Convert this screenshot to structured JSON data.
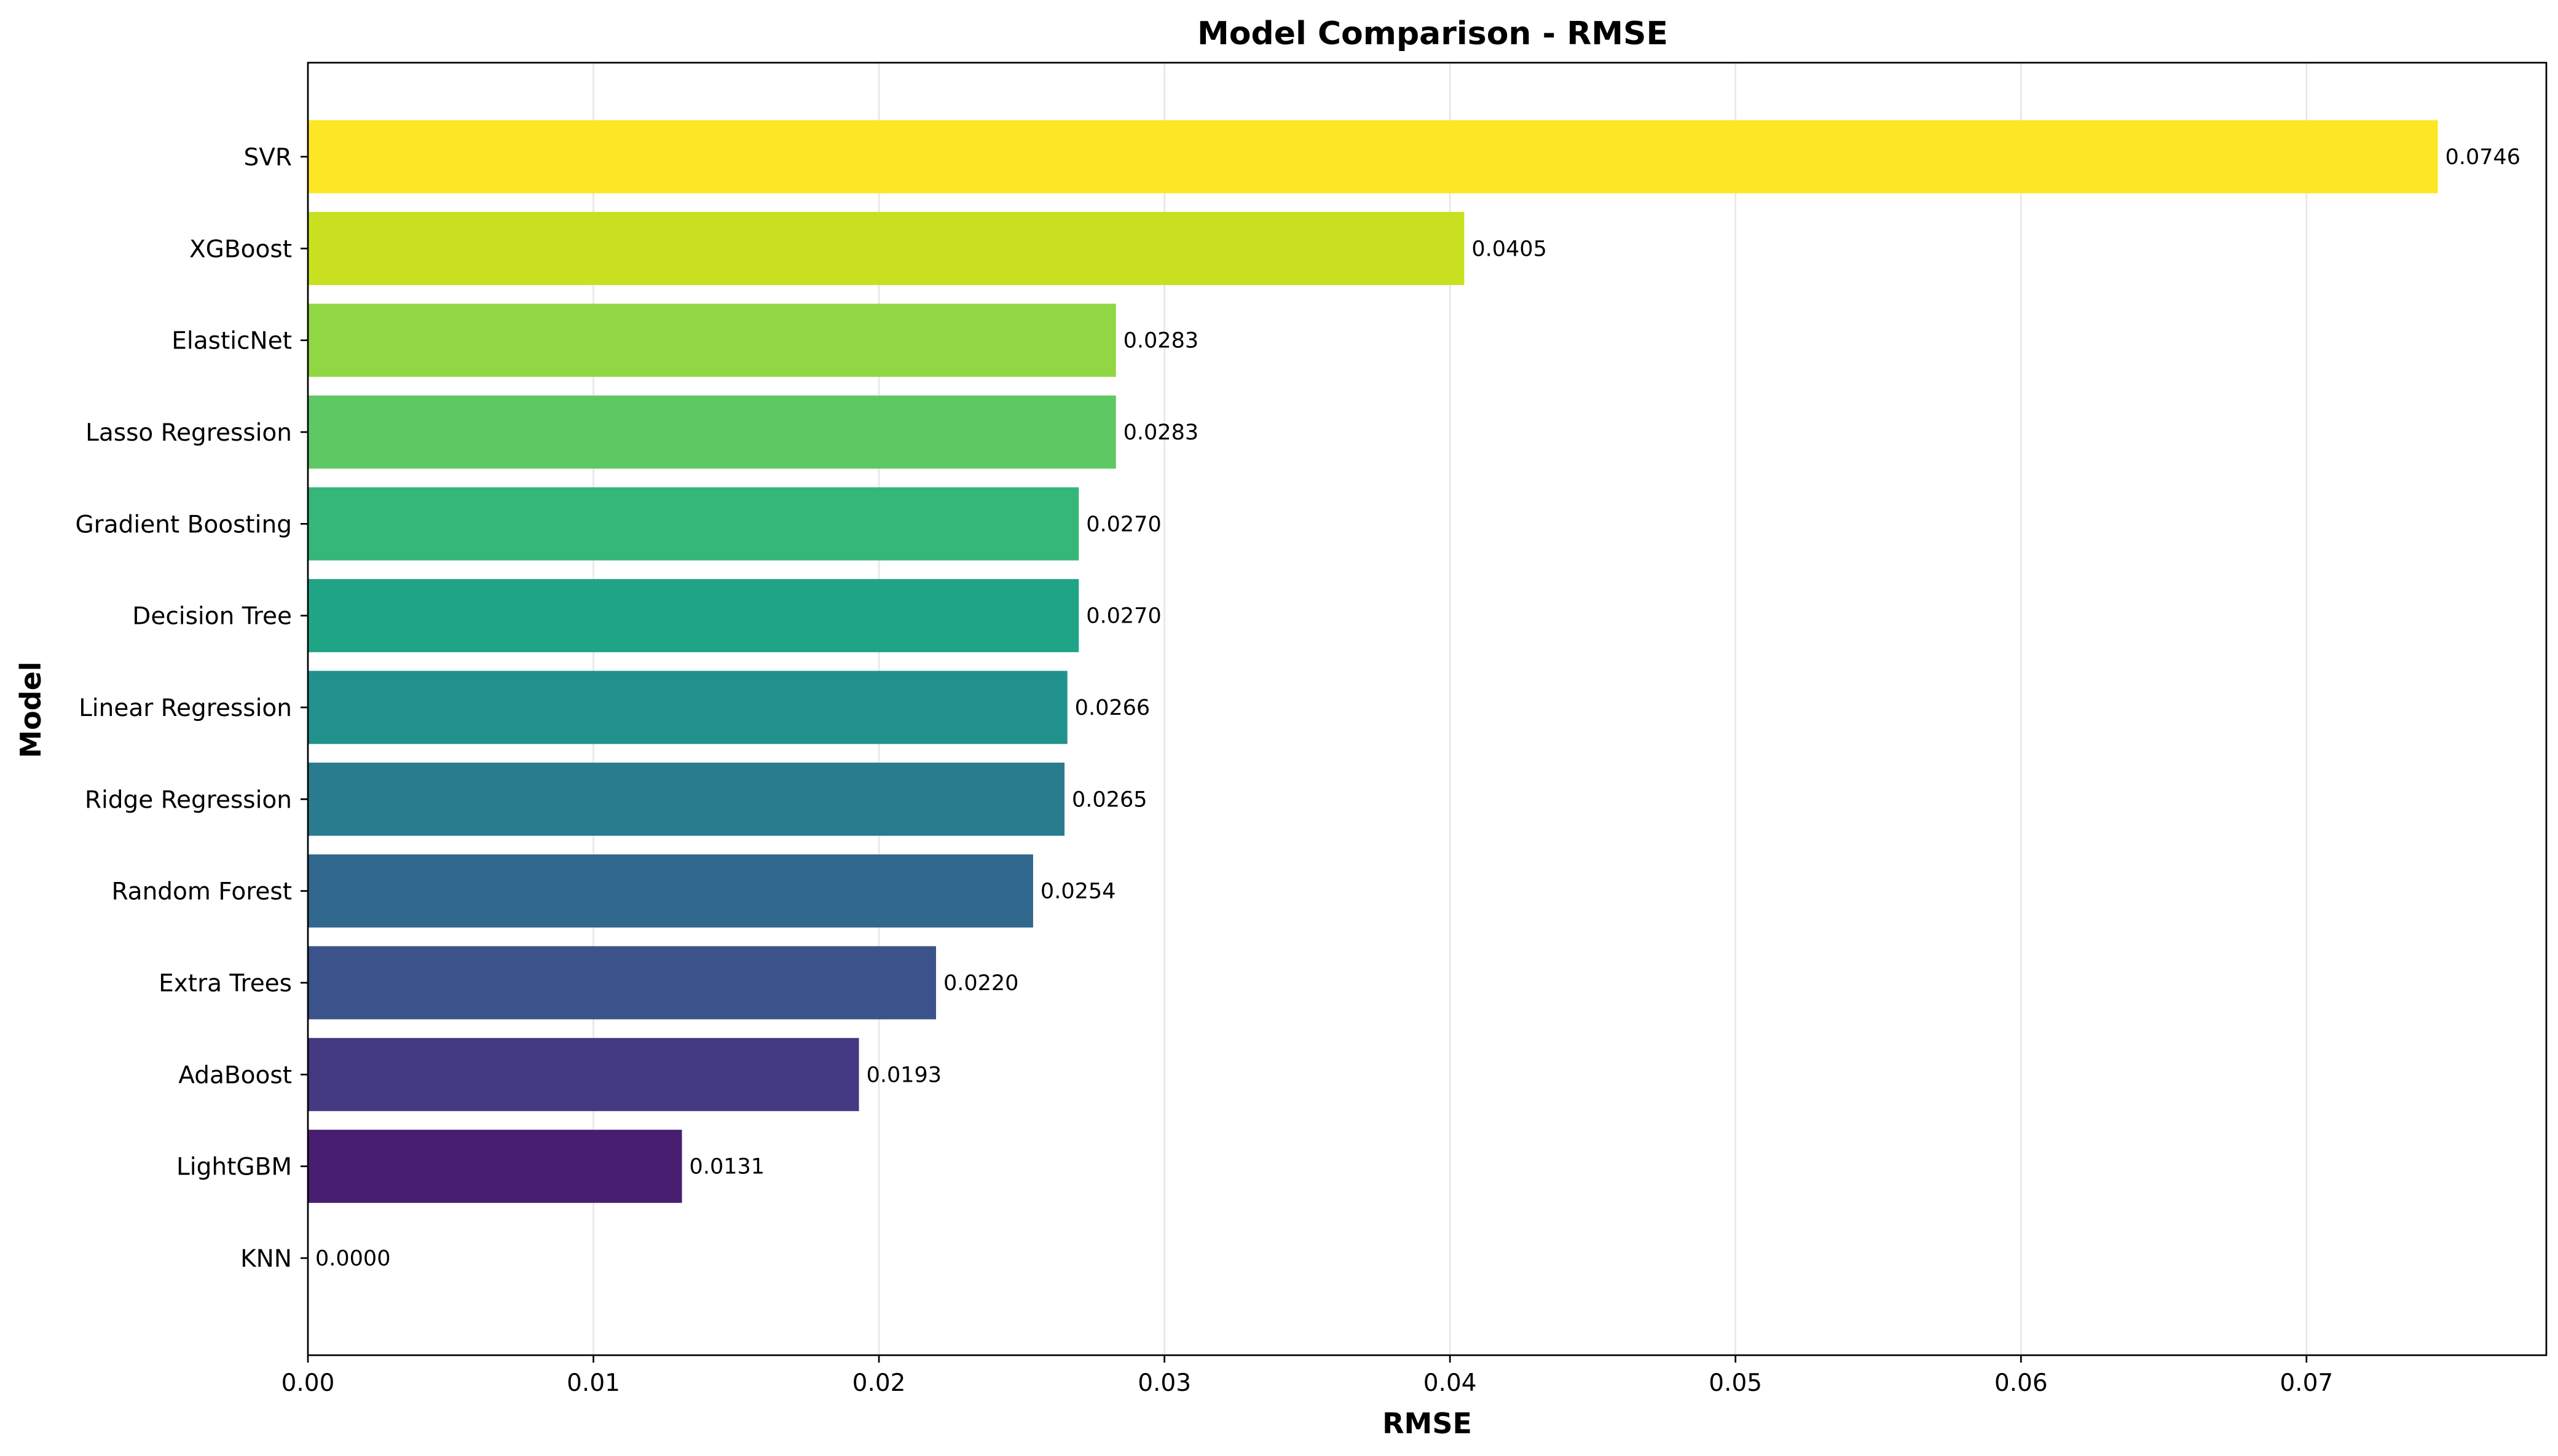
{
  "chart_data": {
    "type": "bar",
    "orientation": "horizontal",
    "title": "Model Comparison - RMSE",
    "xlabel": "RMSE",
    "ylabel": "Model",
    "xlim": [
      0,
      0.0784
    ],
    "xticks": [
      0.0,
      0.01,
      0.02,
      0.03,
      0.04,
      0.05,
      0.06,
      0.07
    ],
    "xtick_labels": [
      "0.00",
      "0.01",
      "0.02",
      "0.03",
      "0.04",
      "0.05",
      "0.06",
      "0.07"
    ],
    "grid": "x-only",
    "legend": "none",
    "colormap": "viridis",
    "bars": [
      {
        "category": "KNN",
        "value": 0.0,
        "label": "0.0000",
        "color": "#440154"
      },
      {
        "category": "LightGBM",
        "value": 0.0131,
        "label": "0.0131",
        "color": "#481f70"
      },
      {
        "category": "AdaBoost",
        "value": 0.0193,
        "label": "0.0193",
        "color": "#443983"
      },
      {
        "category": "Extra Trees",
        "value": 0.022,
        "label": "0.0220",
        "color": "#3b528b"
      },
      {
        "category": "Random Forest",
        "value": 0.0254,
        "label": "0.0254",
        "color": "#31688e"
      },
      {
        "category": "Ridge Regression",
        "value": 0.0265,
        "label": "0.0265",
        "color": "#287c8e"
      },
      {
        "category": "Linear Regression",
        "value": 0.0266,
        "label": "0.0266",
        "color": "#21918c"
      },
      {
        "category": "Decision Tree",
        "value": 0.027,
        "label": "0.0270",
        "color": "#20a486"
      },
      {
        "category": "Gradient Boosting",
        "value": 0.027,
        "label": "0.0270",
        "color": "#35b779"
      },
      {
        "category": "Lasso Regression",
        "value": 0.0283,
        "label": "0.0283",
        "color": "#5ec962"
      },
      {
        "category": "ElasticNet",
        "value": 0.0283,
        "label": "0.0283",
        "color": "#90d743"
      },
      {
        "category": "XGBoost",
        "value": 0.0405,
        "label": "0.0405",
        "color": "#c8e020"
      },
      {
        "category": "SVR",
        "value": 0.0746,
        "label": "0.0746",
        "color": "#fde725"
      }
    ]
  }
}
